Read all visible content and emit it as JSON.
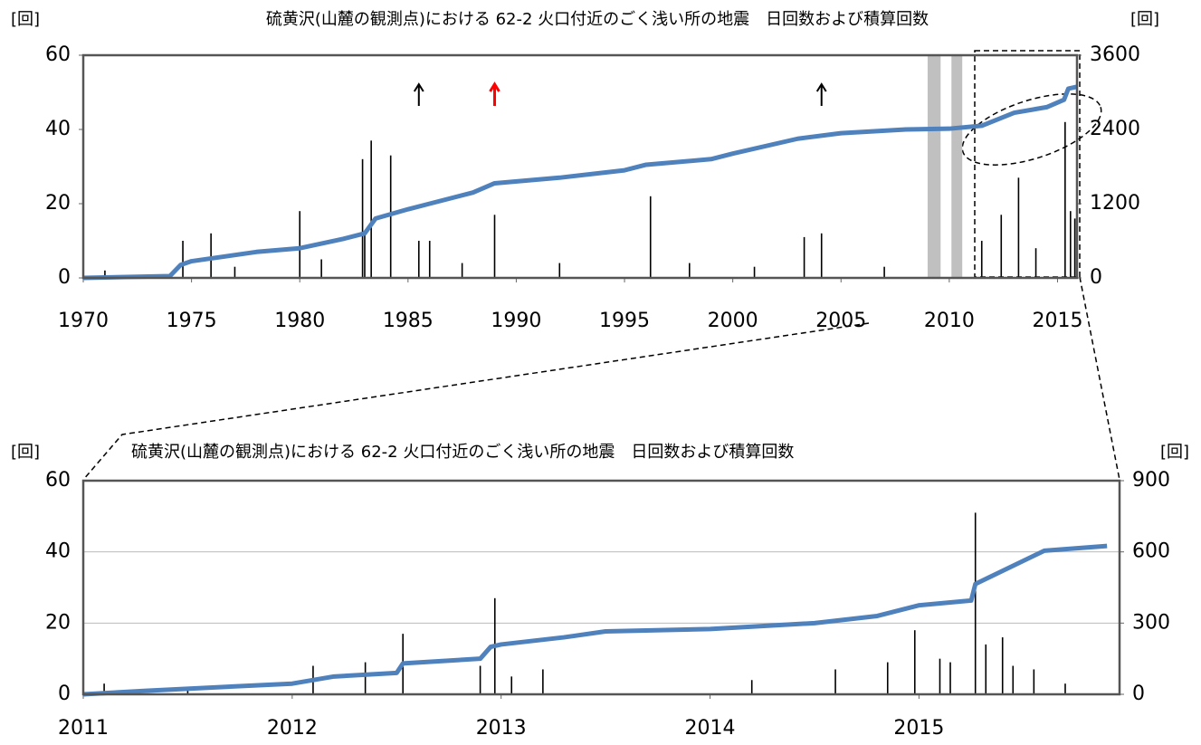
{
  "chart_data": [
    {
      "type": "combo",
      "title": "硫黄沢(山麓の観測点)における 62-2 火口付近のごく浅い所の地震　日回数および積算回数",
      "y_label": "[回]",
      "y2_label": "[回]",
      "xlim": [
        1970,
        2015.9
      ],
      "xticks": [
        1970,
        1975,
        1980,
        1985,
        1990,
        1995,
        2000,
        2005,
        2010,
        2015
      ],
      "ylim": [
        0,
        60
      ],
      "yticks": [
        0,
        20,
        40,
        60
      ],
      "y2lim": [
        0,
        3600
      ],
      "y2ticks": [
        0,
        1200,
        2400,
        3600
      ],
      "grid": false,
      "shaded": [
        [
          2009.0,
          2009.6
        ],
        [
          2010.1,
          2010.6
        ]
      ],
      "arrows": [
        {
          "x": 1985.5,
          "color": "#000000"
        },
        {
          "x": 1989.0,
          "color": "#ff0000"
        },
        {
          "x": 2004.1,
          "color": "#000000"
        }
      ],
      "series": [
        {
          "name": "日回数",
          "type": "bar",
          "color": "#000000",
          "x": [
            1971,
            1974.6,
            1975.9,
            1977,
            1980,
            1981,
            1982.9,
            1983,
            1983.3,
            1984.2,
            1985.5,
            1986,
            1987.5,
            1989,
            1992,
            1996.2,
            1998,
            2001,
            2003.3,
            2004.1,
            2007,
            2011.5,
            2012.4,
            2013.2,
            2014,
            2015.35,
            2015.6,
            2015.8
          ],
          "values": [
            2,
            10,
            12,
            3,
            18,
            5,
            32,
            12,
            37,
            33,
            10,
            10,
            4,
            17,
            4,
            22,
            4,
            3,
            11,
            12,
            3,
            10,
            17,
            27,
            8,
            42,
            18,
            16
          ]
        },
        {
          "name": "積算回数",
          "type": "line",
          "axis": "y2",
          "color": "#4f81bd",
          "x": [
            1970,
            1974,
            1974.5,
            1975,
            1978,
            1980,
            1982,
            1983,
            1983.5,
            1985,
            1986,
            1988,
            1989,
            1992,
            1995,
            1996,
            1999,
            2000,
            2003,
            2005,
            2008,
            2010,
            2011.5,
            2013,
            2014.5,
            2015.3,
            2015.5,
            2015.9
          ],
          "values": [
            0,
            30,
            210,
            270,
            420,
            480,
            630,
            720,
            960,
            1110,
            1200,
            1380,
            1530,
            1620,
            1740,
            1830,
            1920,
            2010,
            2250,
            2340,
            2400,
            2412,
            2460,
            2670,
            2760,
            2880,
            3060,
            3090
          ]
        }
      ]
    },
    {
      "type": "combo",
      "title": "硫黄沢(山麓の観測点)における 62-2 火口付近のごく浅い所の地震　日回数および積算回数",
      "y_label": "[回]",
      "y2_label": "[回]",
      "xlim": [
        2011,
        2015.96
      ],
      "xticks": [
        2011,
        2012,
        2013,
        2014,
        2015
      ],
      "ylim": [
        0,
        60
      ],
      "yticks": [
        0,
        20,
        40,
        60
      ],
      "y2lim": [
        0,
        900
      ],
      "y2ticks": [
        0,
        300,
        600,
        900
      ],
      "grid": true,
      "series": [
        {
          "name": "日回数",
          "type": "bar",
          "color": "#000000",
          "x": [
            2011.1,
            2011.5,
            2012.1,
            2012.35,
            2012.53,
            2012.9,
            2012.97,
            2013.05,
            2013.2,
            2014.2,
            2014.6,
            2014.85,
            2014.98,
            2015.1,
            2015.15,
            2015.27,
            2015.32,
            2015.4,
            2015.45,
            2015.55,
            2015.7
          ],
          "values": [
            3,
            2,
            8,
            9,
            17,
            8,
            27,
            5,
            7,
            4,
            7,
            9,
            18,
            10,
            9,
            51,
            14,
            16,
            8,
            7,
            3
          ]
        },
        {
          "name": "積算回数",
          "type": "line",
          "axis": "y2",
          "color": "#4f81bd",
          "x": [
            2011,
            2011.3,
            2012,
            2012.2,
            2012.5,
            2012.53,
            2012.9,
            2012.95,
            2013.0,
            2013.3,
            2013.5,
            2014,
            2014.5,
            2014.8,
            2015,
            2015.25,
            2015.27,
            2015.4,
            2015.6,
            2015.9
          ],
          "values": [
            0,
            15,
            45,
            75,
            90,
            130,
            150,
            200,
            210,
            240,
            265,
            275,
            300,
            330,
            375,
            395,
            465,
            520,
            605,
            625
          ]
        }
      ]
    }
  ]
}
